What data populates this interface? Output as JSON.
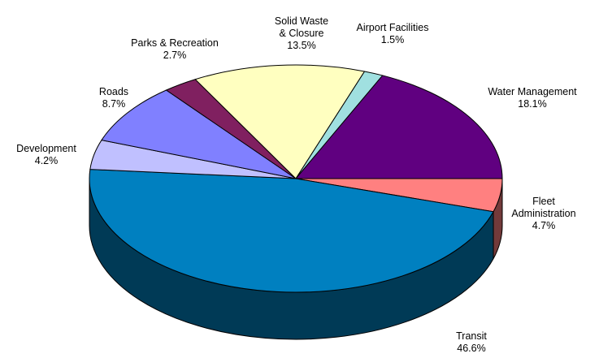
{
  "chart_data": {
    "type": "pie",
    "title": "",
    "three_d": true,
    "start_position": "right (3 o'clock), clockwise",
    "slices": [
      {
        "label": [
          "Fleet",
          "Administration"
        ],
        "value_label": "4.7%",
        "value": 4.7,
        "color": "#ff8080"
      },
      {
        "label": [
          "Transit"
        ],
        "value_label": "46.6%",
        "value": 46.6,
        "color": "#0080c0"
      },
      {
        "label": [
          "Development"
        ],
        "value_label": "4.2%",
        "value": 4.2,
        "color": "#c0c0ff"
      },
      {
        "label": [
          "Roads"
        ],
        "value_label": "8.7%",
        "value": 8.7,
        "color": "#8080ff"
      },
      {
        "label": [
          "Parks & Recreation"
        ],
        "value_label": "2.7%",
        "value": 2.7,
        "color": "#802060"
      },
      {
        "label": [
          "Solid Waste",
          "& Closure"
        ],
        "value_label": "13.5%",
        "value": 13.5,
        "color": "#ffffc0"
      },
      {
        "label": [
          "Airport Facilities"
        ],
        "value_label": "1.5%",
        "value": 1.5,
        "color": "#a0e0e0"
      },
      {
        "label": [
          "Water Management"
        ],
        "value_label": "18.1%",
        "value": 18.1,
        "color": "#600080"
      }
    ]
  }
}
